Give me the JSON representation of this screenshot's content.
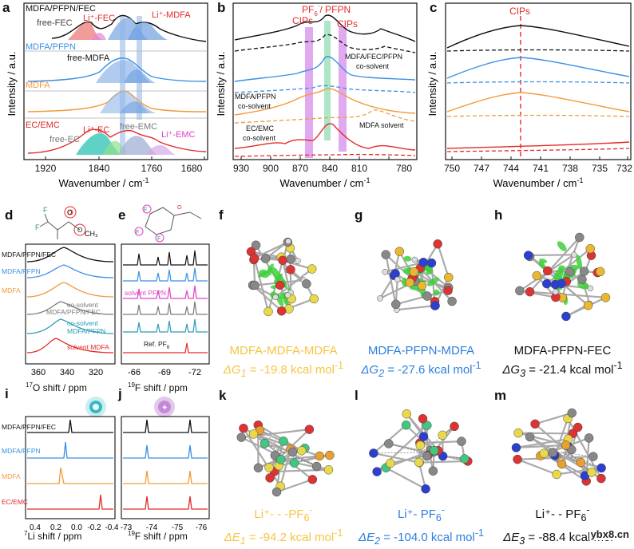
{
  "colors": {
    "black": "#111111",
    "blue": "#3b8fe5",
    "orange": "#f39a3d",
    "red": "#e32a2a",
    "gray": "#7a7a7a",
    "teal": "#2a9bb6",
    "magenta": "#e040c8",
    "purple": "#b45ad8",
    "green": "#5fcf8a",
    "yellow": "#f5c542",
    "blueText": "#2d7fe0",
    "cyan": "#20a9a0"
  },
  "panels": {
    "a": {
      "label": "a",
      "xlabel": "Wavenumber / cm",
      "ylabel": "Intensity / a.u.",
      "ticks": [
        "1920",
        "1840",
        "1760",
        "1680"
      ],
      "traces": [
        {
          "name": "MDFA/PFPN/FEC",
          "color": "#111111",
          "peak_labels": [
            "free-FEC",
            "Li⁺-FEC",
            "Li⁺-MDFA"
          ]
        },
        {
          "name": "MDFA/PFPN",
          "color": "#3b8fe5",
          "peak_labels": [
            "free-MDFA"
          ]
        },
        {
          "name": "MDFA",
          "color": "#f39a3d",
          "peak_labels": []
        },
        {
          "name": "EC/EMC",
          "color": "#e32a2a",
          "peak_labels": [
            "Li⁺-EC",
            "free-EMC",
            "free-EC",
            "Li⁺-EMC"
          ]
        }
      ]
    },
    "b": {
      "label": "b",
      "xlabel": "Wavenumber / cm",
      "ylabel": "Intensity / a.u.",
      "ticks": [
        "930",
        "900",
        "870",
        "840",
        "810",
        "780"
      ],
      "annotations": {
        "top": "PF",
        "top_rest": "/ PFPN",
        "cips_left": "CIPs",
        "cips_right": "CIPs",
        "mfp": "MDFA/FEC/PFPN",
        "mfp2": "co-solvent",
        "mp": "MDFA/PFPN",
        "mp2": "co-solvent",
        "ms": "MDFA solvent",
        "ec": "EC/EMC",
        "ec2": "co-solvent"
      }
    },
    "c": {
      "label": "c",
      "xlabel": "Wavenumber / cm",
      "ylabel": "Intensity / a.u.",
      "ticks": [
        "750",
        "747",
        "744",
        "741",
        "738",
        "735",
        "732"
      ],
      "annotation": "CIPs"
    },
    "d": {
      "label": "d",
      "xlabel": "O shift / ppm",
      "sup": "17",
      "ticks": [
        "360",
        "340",
        "320"
      ],
      "traces": [
        "MDFA/PFPN/FEC",
        "MDFA/PFPN",
        "MDFA",
        "co-solvent",
        "MDFA/PFPN/FEC",
        "co-solvent",
        "MDFA/PFPN",
        "solvent MDFA"
      ]
    },
    "e": {
      "label": "e",
      "xlabel": "F shift / ppm",
      "sup": "19",
      "ticks": [
        "-66",
        "-69",
        "-72"
      ],
      "annotations": [
        "solvent PFPN",
        "Ref. PF"
      ]
    },
    "i": {
      "label": "i",
      "xlabel": "Li shift / ppm",
      "sup": "7",
      "ticks": [
        "0.4",
        "0.2",
        "0.0",
        "-0.2",
        "-0.4"
      ],
      "traces": [
        "MDFA/PFPN/FEC",
        "MDFA/PFPN",
        "MDFA",
        "EC/EMC"
      ]
    },
    "j": {
      "label": "j",
      "xlabel": "F shift / ppm",
      "sup": "19",
      "ticks": [
        "-73",
        "-74",
        "-75",
        "-76"
      ]
    }
  },
  "molecules": [
    {
      "label": "f",
      "title": "MDFA-MDFA-MDFA",
      "energy_sym": "ΔG",
      "sub": "1",
      "energy": " = -19.8 kcal mol",
      "color": "#f5c542"
    },
    {
      "label": "g",
      "title": "MDFA-PFPN-MDFA",
      "energy_sym": "ΔG",
      "sub": "2",
      "energy": " = -27.6 kcal mol",
      "color": "#2d7fe0"
    },
    {
      "label": "h",
      "title": "MDFA-PFPN-FEC",
      "energy_sym": "ΔG",
      "sub": "3",
      "energy": " = -21.4 kcal mol",
      "color": "#111111"
    },
    {
      "label": "k",
      "title": "Li⁺- - -PF",
      "energy_sym": "ΔE",
      "sub": "1",
      "energy": " = -94.2 kcal mol",
      "color": "#f5c542"
    },
    {
      "label": "l",
      "title": "Li⁺- PF",
      "energy_sym": "ΔE",
      "sub": "2",
      "energy": " = -104.0 kcal mol",
      "color": "#2d7fe0"
    },
    {
      "label": "m",
      "title": "Li⁺- - PF",
      "energy_sym": "ΔE",
      "sub": "3",
      "energy": " = -88.4 kcal mol",
      "color": "#111111"
    }
  ],
  "watermark": "ybx8.cn"
}
